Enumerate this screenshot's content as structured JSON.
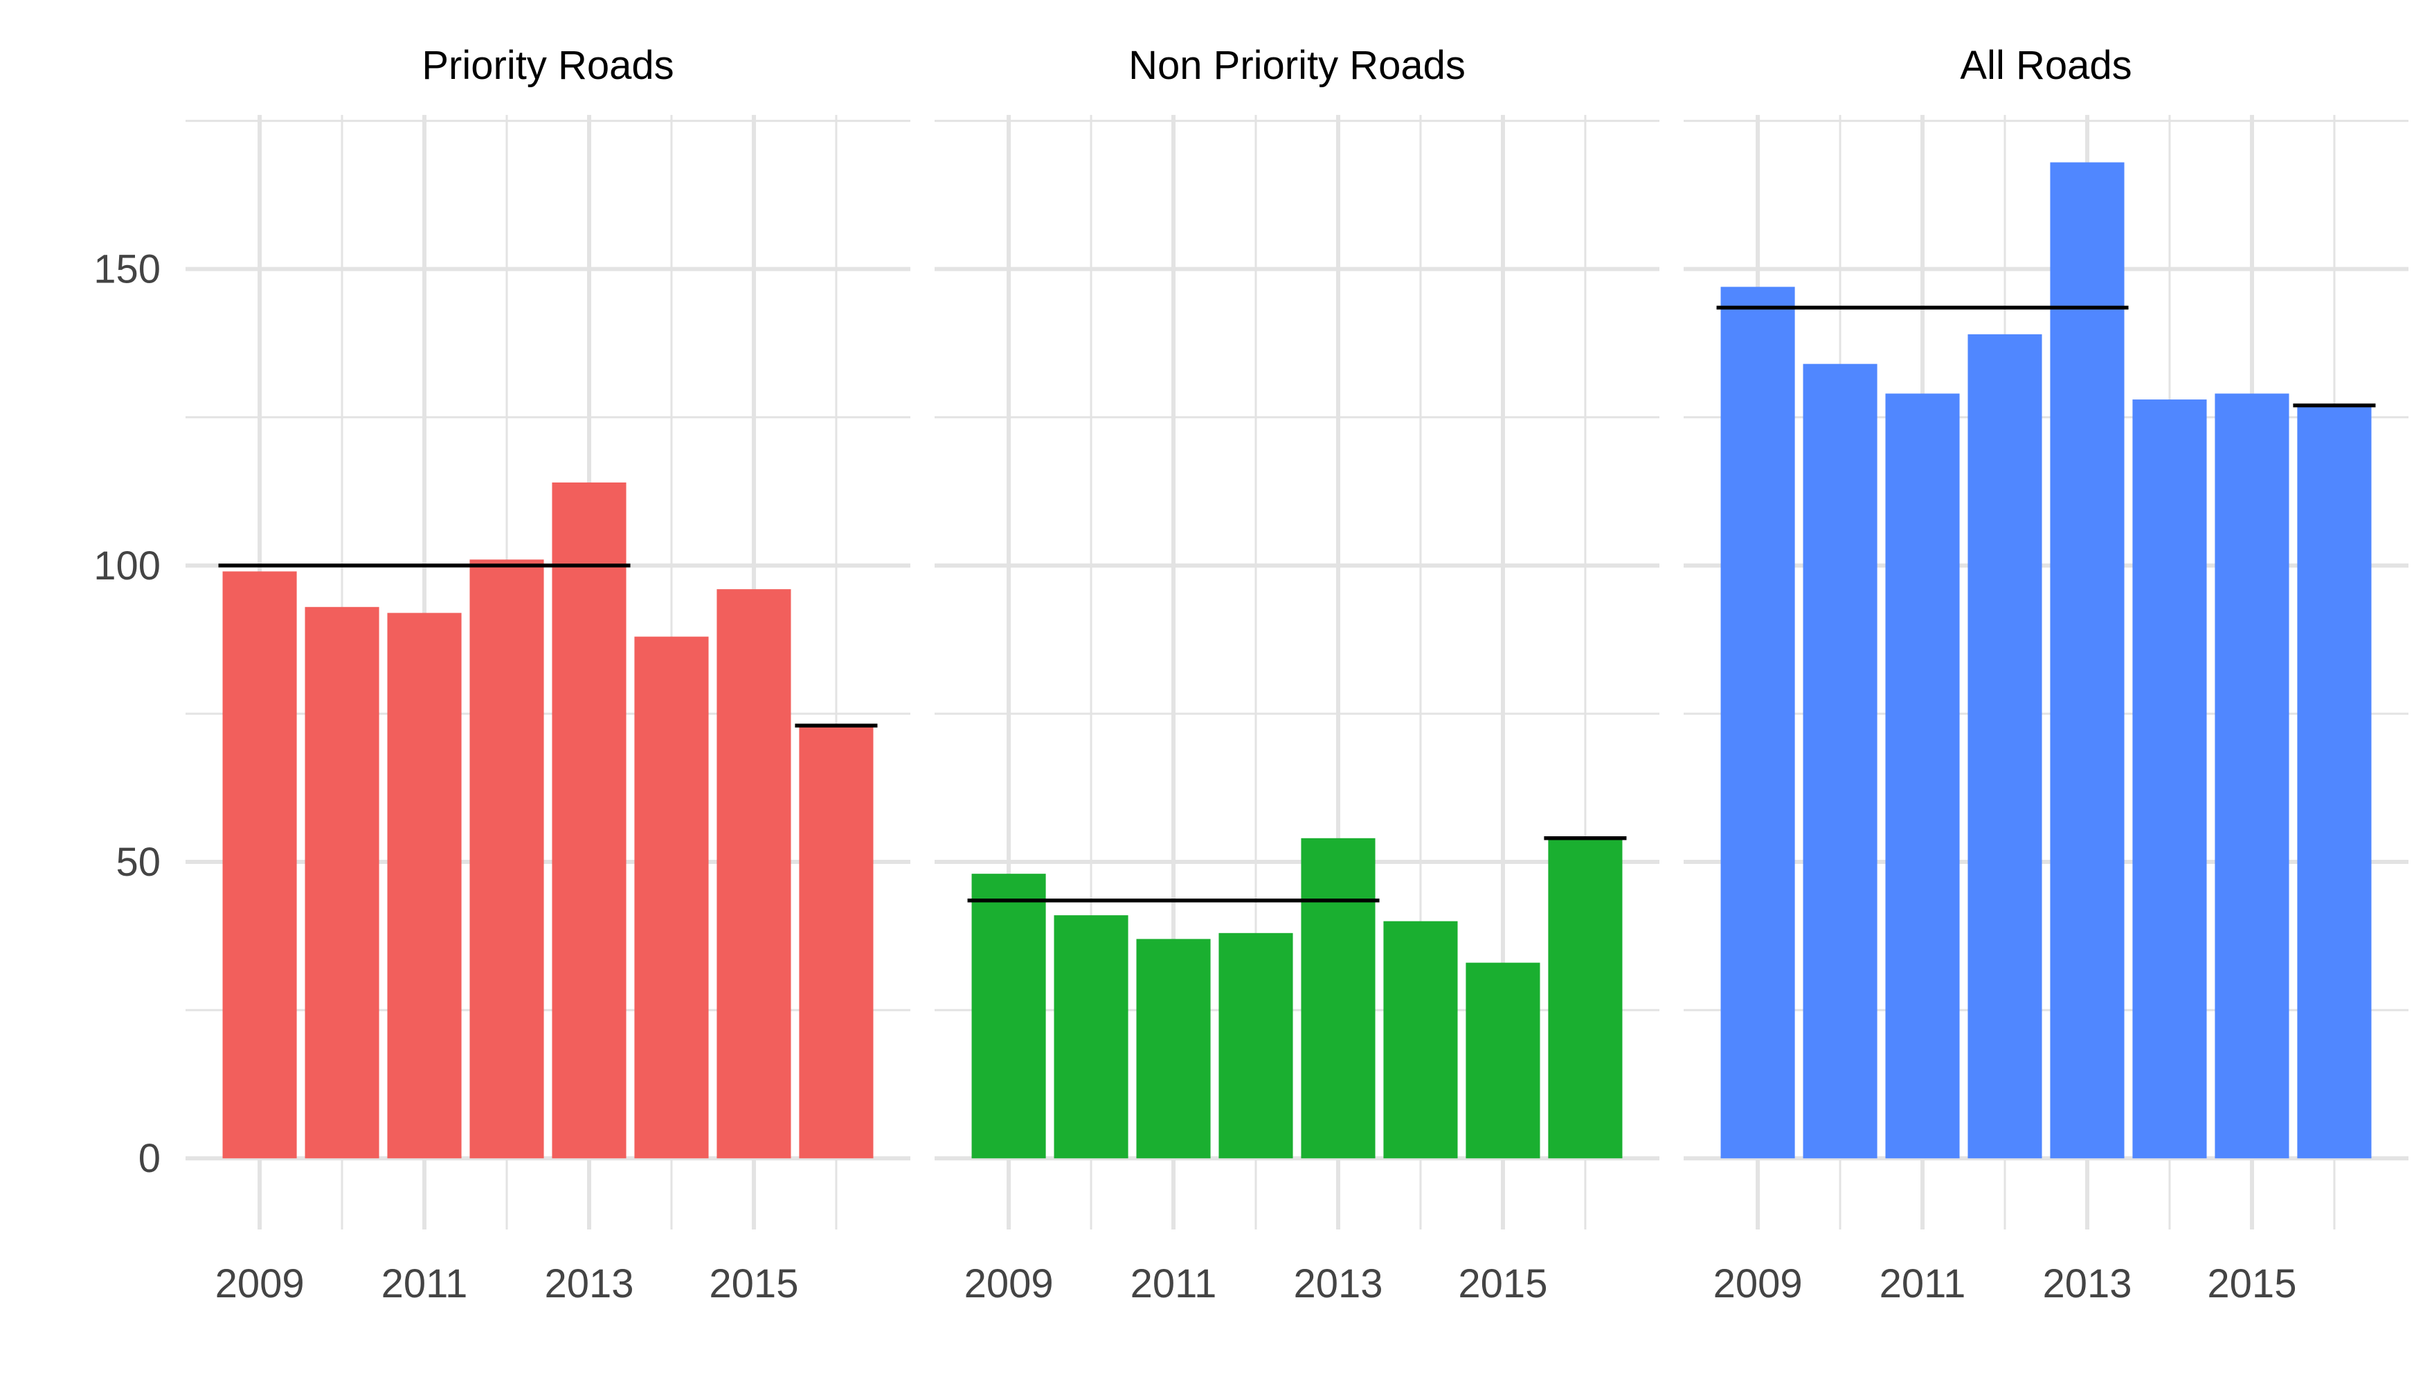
{
  "chart_data": {
    "type": "bar",
    "facets": [
      {
        "title": "Priority Roads",
        "color": "#F25F5C",
        "x": [
          2009,
          2010,
          2011,
          2012,
          2013,
          2014,
          2015,
          2016
        ],
        "values": [
          99,
          93,
          92,
          101,
          114,
          88,
          96,
          73
        ],
        "reference_lines": [
          {
            "from": 2009,
            "to": 2013,
            "value": 100
          },
          {
            "from": 2016,
            "to": 2016,
            "value": 73
          }
        ]
      },
      {
        "title": "Non Priority Roads",
        "color": "#1AAF30",
        "x": [
          2009,
          2010,
          2011,
          2012,
          2013,
          2014,
          2015,
          2016
        ],
        "values": [
          48,
          41,
          37,
          38,
          54,
          40,
          33,
          54
        ],
        "reference_lines": [
          {
            "from": 2009,
            "to": 2013,
            "value": 43.5
          },
          {
            "from": 2016,
            "to": 2016,
            "value": 54
          }
        ]
      },
      {
        "title": "All Roads",
        "color": "#5087FF",
        "x": [
          2009,
          2010,
          2011,
          2012,
          2013,
          2014,
          2015,
          2016
        ],
        "values": [
          147,
          134,
          129,
          139,
          168,
          128,
          129,
          127
        ],
        "reference_lines": [
          {
            "from": 2009,
            "to": 2013,
            "value": 143.5
          },
          {
            "from": 2016,
            "to": 2016,
            "value": 127
          }
        ]
      }
    ],
    "x_tick_labels": [
      "2009",
      "2011",
      "2013",
      "2015"
    ],
    "x_ticks": [
      2009,
      2011,
      2013,
      2015
    ],
    "y_ticks": [
      0,
      50,
      100,
      150
    ],
    "y_tick_labels": [
      "0",
      "50",
      "100",
      "150"
    ],
    "ylim": [
      -12,
      176
    ],
    "xlabel": "",
    "ylabel": "",
    "grid": true,
    "reference_line_color": "#000000",
    "grid_color": "#E3E3E3"
  }
}
